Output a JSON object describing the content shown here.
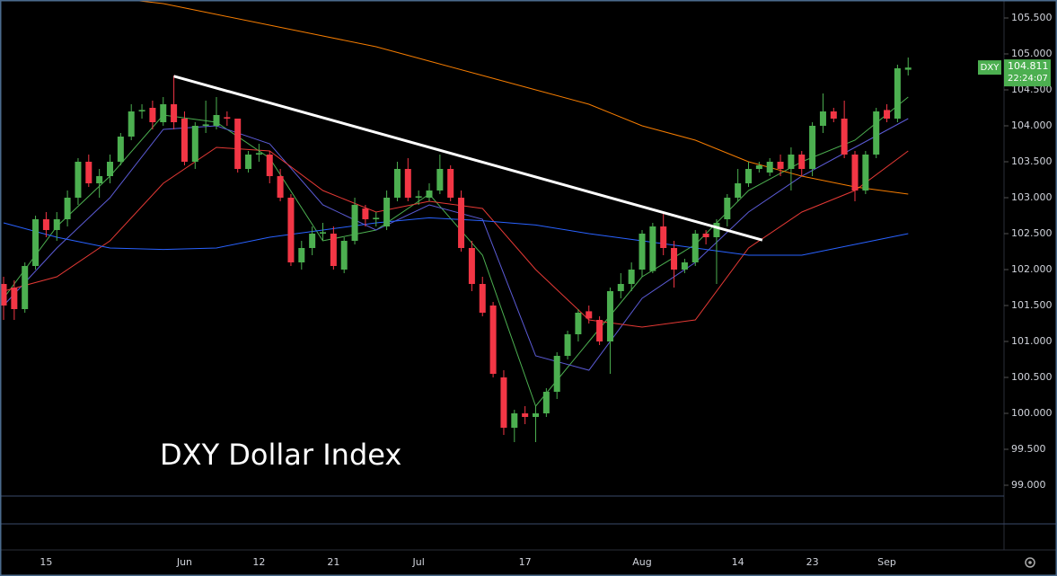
{
  "chart_data": {
    "type": "candlestick",
    "title": "DXY Dollar Index",
    "categories": [
      null,
      null,
      null,
      null,
      "15",
      null,
      null,
      null,
      null,
      null,
      null,
      null,
      null,
      null,
      null,
      null,
      null,
      "Jun",
      null,
      null,
      null,
      null,
      null,
      null,
      "12",
      null,
      null,
      null,
      null,
      null,
      null,
      "21",
      null,
      null,
      null,
      null,
      null,
      null,
      null,
      "Jul",
      null,
      null,
      null,
      null,
      null,
      null,
      null,
      null,
      null,
      "17",
      null,
      null,
      null,
      null,
      null,
      null,
      null,
      null,
      null,
      null,
      "Aug",
      null,
      null,
      null,
      null,
      null,
      null,
      null,
      null,
      "14",
      null,
      null,
      null,
      null,
      null,
      null,
      "23",
      null,
      null,
      null,
      null,
      null,
      null,
      "Sep",
      null,
      null
    ],
    "open": [
      101.8,
      101.75,
      101.45,
      102.05,
      102.7,
      102.55,
      102.7,
      103.0,
      103.5,
      103.2,
      103.3,
      103.5,
      103.85,
      104.2,
      104.25,
      104.05,
      104.3,
      104.1,
      103.5,
      104.0,
      104.0,
      104.12,
      104.1,
      103.4,
      103.6,
      103.6,
      103.3,
      103.0,
      102.1,
      102.3,
      102.5,
      102.5,
      102.0,
      102.4,
      102.85,
      102.7,
      102.6,
      103.0,
      103.4,
      103.0,
      103.0,
      103.1,
      103.4,
      103.0,
      102.3,
      101.8,
      101.5,
      100.5,
      99.8,
      100.0,
      99.95,
      100.0,
      100.3,
      100.8,
      101.1,
      101.42,
      101.3,
      101.0,
      101.7,
      101.8,
      102.0,
      101.98,
      102.6,
      102.3,
      102.0,
      102.1,
      102.5,
      102.45,
      102.7,
      103.0,
      103.2,
      103.4,
      103.35,
      103.5,
      103.4,
      103.6,
      103.4,
      104.0,
      104.2,
      104.1,
      103.6,
      103.1,
      103.6,
      104.22,
      104.1,
      104.78
    ],
    "high": [
      101.9,
      101.85,
      102.1,
      102.75,
      102.8,
      102.8,
      103.1,
      103.55,
      103.6,
      103.4,
      103.6,
      103.9,
      104.3,
      104.3,
      104.35,
      104.4,
      104.7,
      104.2,
      104.05,
      104.35,
      104.4,
      104.2,
      104.1,
      103.65,
      103.75,
      103.65,
      103.4,
      103.05,
      102.4,
      102.6,
      102.65,
      102.6,
      102.45,
      103.0,
      102.9,
      102.8,
      103.1,
      103.5,
      103.55,
      103.1,
      103.2,
      103.6,
      103.45,
      103.1,
      102.4,
      101.9,
      101.55,
      100.6,
      100.05,
      100.1,
      100.1,
      100.35,
      100.85,
      101.15,
      101.45,
      101.5,
      101.35,
      101.75,
      101.95,
      102.1,
      102.55,
      102.65,
      102.8,
      102.4,
      102.15,
      102.55,
      102.55,
      102.7,
      103.05,
      103.4,
      103.5,
      103.5,
      103.55,
      103.6,
      103.7,
      103.65,
      104.05,
      104.45,
      104.25,
      104.35,
      103.65,
      103.65,
      104.25,
      104.3,
      104.85,
      104.95
    ],
    "low": [
      101.3,
      101.3,
      101.4,
      102.0,
      102.45,
      102.4,
      102.6,
      102.9,
      103.15,
      103.0,
      103.2,
      103.45,
      103.8,
      104.1,
      103.95,
      104.0,
      103.95,
      103.45,
      103.4,
      103.9,
      103.95,
      104.0,
      103.35,
      103.35,
      103.5,
      103.2,
      102.95,
      102.05,
      102.0,
      102.2,
      102.4,
      102.0,
      101.95,
      102.35,
      102.6,
      102.6,
      102.55,
      102.95,
      102.95,
      102.9,
      102.95,
      103.05,
      102.95,
      102.25,
      101.7,
      101.35,
      100.5,
      99.7,
      99.6,
      99.85,
      99.6,
      99.95,
      100.2,
      100.75,
      101.0,
      101.25,
      100.95,
      100.55,
      101.6,
      101.7,
      101.9,
      101.95,
      102.2,
      101.75,
      101.95,
      102.05,
      102.35,
      101.8,
      102.6,
      102.95,
      103.15,
      103.35,
      103.3,
      103.3,
      103.1,
      103.3,
      103.3,
      103.9,
      104.05,
      103.55,
      102.95,
      103.05,
      103.55,
      104.05,
      104.05,
      104.7
    ],
    "close": [
      101.5,
      101.45,
      102.05,
      102.7,
      102.55,
      102.7,
      103.0,
      103.5,
      103.2,
      103.3,
      103.5,
      103.85,
      104.2,
      104.22,
      104.05,
      104.3,
      104.05,
      103.5,
      104.0,
      104.02,
      104.15,
      104.1,
      103.4,
      103.6,
      103.62,
      103.3,
      103.0,
      102.1,
      102.3,
      102.5,
      102.52,
      102.05,
      102.4,
      102.9,
      102.7,
      102.72,
      103.0,
      103.4,
      103.0,
      103.02,
      103.1,
      103.4,
      103.0,
      102.3,
      101.8,
      101.4,
      100.55,
      99.8,
      100.0,
      99.95,
      100.0,
      100.3,
      100.8,
      101.1,
      101.4,
      101.32,
      101.0,
      101.7,
      101.8,
      102.0,
      102.5,
      102.6,
      102.3,
      102.0,
      102.1,
      102.5,
      102.45,
      102.65,
      103.0,
      103.2,
      103.4,
      103.45,
      103.5,
      103.4,
      103.6,
      103.4,
      104.0,
      104.2,
      104.1,
      103.6,
      103.1,
      103.6,
      104.2,
      104.1,
      104.8,
      104.81
    ],
    "up_color": "#4caf50",
    "down_color": "#f23645",
    "series": [
      {
        "color": "#4caf50",
        "x": [
          0,
          5,
          10,
          15,
          20,
          25,
          30,
          35,
          40,
          45,
          50,
          55,
          60,
          65,
          70,
          75,
          80,
          85
        ],
        "values": [
          101.6,
          102.6,
          103.3,
          104.15,
          104.05,
          103.55,
          102.4,
          102.55,
          103.05,
          102.2,
          100.1,
          101.0,
          101.9,
          102.35,
          103.1,
          103.5,
          103.8,
          104.4
        ]
      },
      {
        "color": "#5b5bd6",
        "x": [
          0,
          5,
          10,
          15,
          20,
          25,
          30,
          35,
          40,
          45,
          50,
          55,
          60,
          65,
          70,
          75,
          80,
          85
        ],
        "values": [
          101.5,
          102.3,
          103.0,
          103.95,
          104.0,
          103.75,
          102.9,
          102.55,
          102.9,
          102.7,
          100.8,
          100.6,
          101.6,
          102.1,
          102.8,
          103.3,
          103.7,
          104.1
        ]
      },
      {
        "color": "#e53935",
        "x": [
          0,
          5,
          10,
          15,
          20,
          25,
          30,
          35,
          40,
          45,
          50,
          55,
          60,
          65,
          70,
          75,
          80,
          85
        ],
        "values": [
          101.7,
          101.9,
          102.4,
          103.2,
          103.7,
          103.65,
          103.1,
          102.8,
          102.95,
          102.85,
          102.0,
          101.3,
          101.2,
          101.3,
          102.3,
          102.8,
          103.1,
          103.65
        ]
      },
      {
        "color": "#2962ff",
        "x": [
          0,
          5,
          10,
          15,
          20,
          25,
          30,
          35,
          40,
          45,
          50,
          55,
          60,
          65,
          70,
          75,
          80,
          85
        ],
        "values": [
          102.65,
          102.45,
          102.3,
          102.28,
          102.3,
          102.45,
          102.55,
          102.65,
          102.72,
          102.68,
          102.62,
          102.5,
          102.4,
          102.3,
          102.2,
          102.2,
          102.35,
          102.5
        ]
      },
      {
        "color": "#f57c00",
        "x": [
          12,
          15,
          20,
          25,
          30,
          35,
          40,
          45,
          50,
          55,
          60,
          65,
          70,
          75,
          80,
          85
        ],
        "values": [
          105.75,
          105.7,
          105.55,
          105.4,
          105.25,
          105.1,
          104.9,
          104.7,
          104.5,
          104.3,
          104.0,
          103.8,
          103.5,
          103.3,
          103.15,
          103.05
        ]
      }
    ],
    "trendline": {
      "color": "#ffffff",
      "x": [
        16,
        71.3
      ],
      "values": [
        104.69,
        102.41
      ]
    },
    "last_price": {
      "symbol": "DXY",
      "price": 104.811,
      "countdown": "22:24:07"
    },
    "ylim": [
      98.85,
      105.75
    ],
    "yticks": [
      {
        "value": 99,
        "label": "99.000"
      },
      {
        "value": 99.5,
        "label": "99.500"
      },
      {
        "value": 100,
        "label": "100.000"
      },
      {
        "value": 100.5,
        "label": "100.500"
      },
      {
        "value": 101,
        "label": "101.000"
      },
      {
        "value": 101.5,
        "label": "101.500"
      },
      {
        "value": 102,
        "label": "102.000"
      },
      {
        "value": 102.5,
        "label": "102.500"
      },
      {
        "value": 103,
        "label": "103.000"
      },
      {
        "value": 103.5,
        "label": "103.500"
      },
      {
        "value": 104,
        "label": "104.000"
      },
      {
        "value": 104.5,
        "label": "104.500"
      },
      {
        "value": 105,
        "label": "105.000"
      },
      {
        "value": 105.5,
        "label": "105.500"
      }
    ]
  }
}
